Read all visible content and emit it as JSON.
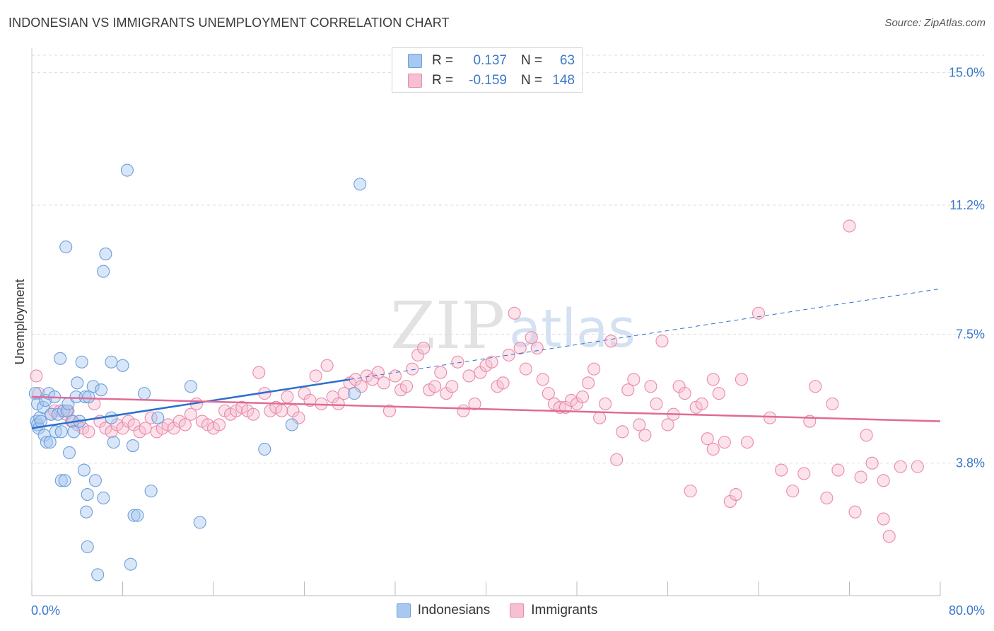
{
  "title": "INDONESIAN VS IMMIGRANTS UNEMPLOYMENT CORRELATION CHART",
  "source": "Source: ZipAtlas.com",
  "watermark": {
    "zip": "ZIP",
    "atlas": "atlas"
  },
  "legend": {
    "rows": [
      {
        "r_label": "R =",
        "r_value": "0.137",
        "n_label": "N =",
        "n_value": "63"
      },
      {
        "r_label": "R =",
        "r_value": "-0.159",
        "n_label": "N =",
        "n_value": "148"
      }
    ]
  },
  "colors": {
    "indonesians_fill": "#a9c8f0",
    "indonesians_stroke": "#6a9fdc",
    "indonesians_line": "#2e6fcc",
    "immigrants_fill": "#f6bfd2",
    "immigrants_stroke": "#e88aaa",
    "immigrants_line": "#e06b97",
    "tick_text": "#3a78c9",
    "grid": "#dddddd"
  },
  "chart_data": {
    "type": "scatter",
    "title": "INDONESIAN VS IMMIGRANTS UNEMPLOYMENT CORRELATION CHART",
    "xlabel": "",
    "ylabel": "Unemployment",
    "xlim": [
      0,
      80
    ],
    "ylim": [
      0,
      15.5
    ],
    "x_tick_labels": [
      {
        "value": 0,
        "label": "0.0%"
      },
      {
        "value": 80,
        "label": "80.0%"
      }
    ],
    "y_ticks": [
      {
        "value": 3.8,
        "label": "3.8%"
      },
      {
        "value": 7.5,
        "label": "7.5%"
      },
      {
        "value": 11.2,
        "label": "11.2%"
      },
      {
        "value": 15.0,
        "label": "15.0%"
      }
    ],
    "series": [
      {
        "name": "Indonesians",
        "R": 0.137,
        "N": 63,
        "trend": {
          "x0": 0,
          "y0": 4.8,
          "x1": 28,
          "y1": 6.2,
          "dash_x1": 80,
          "dash_y1": 8.8
        },
        "points": [
          [
            0.3,
            5.8
          ],
          [
            0.4,
            5.0
          ],
          [
            0.5,
            4.9
          ],
          [
            0.5,
            5.5
          ],
          [
            0.6,
            4.8
          ],
          [
            0.7,
            5.1
          ],
          [
            0.8,
            5.0
          ],
          [
            1.0,
            5.4
          ],
          [
            1.1,
            4.6
          ],
          [
            1.2,
            5.6
          ],
          [
            1.3,
            4.4
          ],
          [
            1.5,
            5.8
          ],
          [
            1.6,
            4.4
          ],
          [
            1.7,
            5.2
          ],
          [
            2.0,
            5.7
          ],
          [
            2.1,
            4.7
          ],
          [
            2.3,
            5.2
          ],
          [
            2.5,
            6.8
          ],
          [
            2.6,
            4.7
          ],
          [
            2.6,
            3.3
          ],
          [
            2.8,
            5.3
          ],
          [
            2.9,
            3.3
          ],
          [
            3.0,
            10.0
          ],
          [
            3.1,
            5.3
          ],
          [
            3.2,
            5.5
          ],
          [
            3.3,
            4.1
          ],
          [
            3.6,
            5.0
          ],
          [
            3.7,
            4.7
          ],
          [
            3.9,
            5.7
          ],
          [
            4.0,
            6.1
          ],
          [
            4.2,
            5.0
          ],
          [
            4.4,
            6.7
          ],
          [
            4.6,
            3.6
          ],
          [
            4.7,
            5.7
          ],
          [
            4.8,
            2.4
          ],
          [
            4.9,
            2.9
          ],
          [
            4.9,
            1.4
          ],
          [
            5.0,
            5.7
          ],
          [
            5.4,
            6.0
          ],
          [
            5.6,
            3.3
          ],
          [
            5.8,
            0.6
          ],
          [
            6.1,
            5.9
          ],
          [
            6.3,
            2.8
          ],
          [
            6.5,
            9.8
          ],
          [
            6.3,
            9.3
          ],
          [
            7.0,
            6.7
          ],
          [
            7.0,
            5.1
          ],
          [
            7.2,
            4.4
          ],
          [
            8.0,
            6.6
          ],
          [
            8.4,
            12.2
          ],
          [
            8.7,
            0.9
          ],
          [
            8.9,
            4.3
          ],
          [
            9.0,
            2.3
          ],
          [
            9.3,
            2.3
          ],
          [
            9.9,
            5.8
          ],
          [
            10.5,
            3.0
          ],
          [
            11.1,
            5.1
          ],
          [
            14.0,
            6.0
          ],
          [
            14.8,
            2.1
          ],
          [
            20.5,
            4.2
          ],
          [
            22.9,
            4.9
          ],
          [
            28.4,
            5.8
          ],
          [
            28.9,
            11.8
          ]
        ]
      },
      {
        "name": "Immigrants",
        "R": -0.159,
        "N": 148,
        "trend": {
          "x0": 0,
          "y0": 5.7,
          "x1": 80,
          "y1": 5.0
        },
        "points": [
          [
            0.4,
            6.3
          ],
          [
            0.6,
            5.8
          ],
          [
            1.7,
            5.2
          ],
          [
            2.0,
            5.3
          ],
          [
            2.5,
            5.3
          ],
          [
            3.0,
            5.2
          ],
          [
            3.2,
            5.3
          ],
          [
            3.5,
            5.0
          ],
          [
            4.0,
            4.9
          ],
          [
            4.5,
            4.8
          ],
          [
            5.0,
            4.7
          ],
          [
            5.5,
            5.5
          ],
          [
            6.0,
            5.0
          ],
          [
            6.5,
            4.8
          ],
          [
            7.0,
            4.7
          ],
          [
            7.5,
            4.9
          ],
          [
            8.0,
            4.8
          ],
          [
            8.5,
            5.0
          ],
          [
            9.0,
            4.9
          ],
          [
            9.5,
            4.7
          ],
          [
            10.0,
            4.8
          ],
          [
            10.5,
            5.1
          ],
          [
            11.0,
            4.7
          ],
          [
            11.5,
            4.8
          ],
          [
            12.0,
            4.9
          ],
          [
            12.5,
            4.8
          ],
          [
            13.0,
            5.0
          ],
          [
            13.5,
            4.9
          ],
          [
            14.0,
            5.2
          ],
          [
            14.5,
            5.5
          ],
          [
            15.0,
            5.0
          ],
          [
            15.5,
            4.9
          ],
          [
            16.0,
            4.8
          ],
          [
            16.5,
            4.9
          ],
          [
            17.0,
            5.3
          ],
          [
            17.5,
            5.2
          ],
          [
            18.0,
            5.3
          ],
          [
            18.5,
            5.4
          ],
          [
            19.0,
            5.3
          ],
          [
            19.5,
            5.2
          ],
          [
            20.0,
            6.4
          ],
          [
            20.5,
            5.8
          ],
          [
            21.0,
            5.3
          ],
          [
            21.5,
            5.4
          ],
          [
            22.0,
            5.3
          ],
          [
            22.5,
            5.7
          ],
          [
            23.0,
            5.3
          ],
          [
            23.5,
            5.1
          ],
          [
            24.0,
            5.8
          ],
          [
            24.5,
            5.6
          ],
          [
            25.0,
            6.3
          ],
          [
            25.5,
            5.5
          ],
          [
            26.0,
            6.6
          ],
          [
            26.5,
            5.7
          ],
          [
            27.0,
            5.5
          ],
          [
            27.5,
            5.8
          ],
          [
            28.0,
            6.1
          ],
          [
            28.5,
            6.2
          ],
          [
            29.0,
            6.0
          ],
          [
            29.5,
            6.3
          ],
          [
            30.0,
            6.2
          ],
          [
            30.5,
            6.4
          ],
          [
            31.0,
            6.1
          ],
          [
            31.5,
            5.3
          ],
          [
            32.0,
            6.3
          ],
          [
            32.5,
            5.9
          ],
          [
            33.0,
            6.0
          ],
          [
            33.5,
            6.5
          ],
          [
            34.0,
            6.9
          ],
          [
            34.5,
            7.1
          ],
          [
            35.0,
            5.9
          ],
          [
            35.5,
            6.0
          ],
          [
            36.0,
            6.4
          ],
          [
            36.5,
            5.8
          ],
          [
            37.0,
            6.0
          ],
          [
            37.5,
            6.7
          ],
          [
            38.0,
            5.3
          ],
          [
            38.5,
            6.3
          ],
          [
            39.0,
            5.5
          ],
          [
            39.5,
            6.4
          ],
          [
            40.0,
            6.6
          ],
          [
            40.5,
            6.7
          ],
          [
            41.0,
            6.0
          ],
          [
            41.5,
            6.1
          ],
          [
            42.0,
            6.9
          ],
          [
            42.5,
            8.1
          ],
          [
            43.0,
            7.1
          ],
          [
            43.5,
            6.5
          ],
          [
            44.0,
            7.4
          ],
          [
            44.5,
            7.1
          ],
          [
            45.0,
            6.2
          ],
          [
            45.5,
            5.8
          ],
          [
            46.0,
            5.5
          ],
          [
            46.5,
            5.4
          ],
          [
            47.0,
            5.4
          ],
          [
            47.5,
            5.6
          ],
          [
            48.0,
            5.5
          ],
          [
            48.5,
            5.7
          ],
          [
            49.0,
            6.1
          ],
          [
            49.5,
            6.5
          ],
          [
            50.0,
            5.1
          ],
          [
            50.5,
            5.5
          ],
          [
            51.0,
            7.3
          ],
          [
            51.5,
            3.9
          ],
          [
            52.0,
            4.7
          ],
          [
            52.5,
            5.9
          ],
          [
            53.0,
            6.2
          ],
          [
            53.5,
            4.9
          ],
          [
            54.0,
            4.6
          ],
          [
            54.5,
            6.0
          ],
          [
            55.0,
            5.5
          ],
          [
            55.5,
            7.3
          ],
          [
            56.0,
            4.9
          ],
          [
            56.5,
            5.2
          ],
          [
            57.0,
            6.0
          ],
          [
            57.5,
            5.8
          ],
          [
            58.0,
            3.0
          ],
          [
            58.5,
            5.4
          ],
          [
            59.0,
            5.5
          ],
          [
            59.5,
            4.5
          ],
          [
            60.0,
            4.2
          ],
          [
            60.5,
            5.8
          ],
          [
            61.0,
            4.4
          ],
          [
            61.5,
            2.7
          ],
          [
            62.0,
            2.9
          ],
          [
            62.5,
            6.2
          ],
          [
            63.0,
            4.4
          ],
          [
            64.0,
            8.1
          ],
          [
            65.0,
            5.1
          ],
          [
            66.0,
            3.6
          ],
          [
            67.0,
            3.0
          ],
          [
            68.0,
            3.5
          ],
          [
            69.0,
            6.0
          ],
          [
            70.0,
            2.8
          ],
          [
            70.5,
            5.5
          ],
          [
            71.0,
            3.6
          ],
          [
            72.5,
            2.4
          ],
          [
            73.0,
            3.4
          ],
          [
            73.5,
            4.6
          ],
          [
            74.0,
            3.8
          ],
          [
            75.0,
            3.3
          ],
          [
            75.0,
            2.2
          ],
          [
            75.5,
            1.7
          ],
          [
            72.0,
            10.6
          ],
          [
            76.5,
            3.7
          ],
          [
            78.0,
            3.7
          ],
          [
            68.5,
            5.0
          ],
          [
            60.0,
            6.2
          ]
        ]
      }
    ]
  }
}
